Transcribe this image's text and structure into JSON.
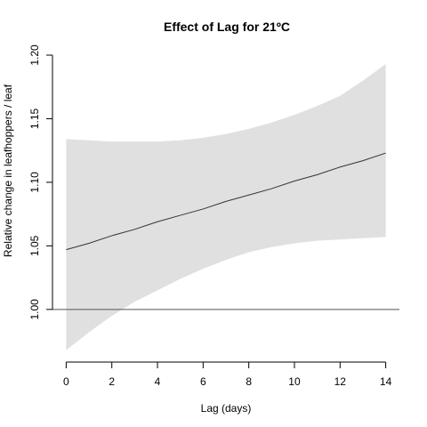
{
  "chart_data": {
    "type": "line",
    "title": "Effect of Lag for 21ºC",
    "xlabel": "Lag (days)",
    "ylabel": "Relative change in leafhoppers / leaf",
    "xlim": [
      -0.6,
      14.6
    ],
    "ylim": [
      0.96,
      1.2
    ],
    "xticks": [
      0,
      2,
      4,
      6,
      8,
      10,
      12,
      14
    ],
    "yticks": [
      1.0,
      1.05,
      1.1,
      1.15,
      1.2
    ],
    "ytick_labels": [
      "1.00",
      "1.05",
      "1.10",
      "1.15",
      "1.20"
    ],
    "reference_line": 1.0,
    "band_color": "#e0e0e0",
    "line_color": "#333333",
    "series": [
      {
        "x": [
          0,
          1,
          2,
          3,
          4,
          5,
          6,
          7,
          8,
          9,
          10,
          11,
          12,
          13,
          14
        ],
        "y": [
          1.047,
          1.052,
          1.058,
          1.063,
          1.069,
          1.074,
          1.079,
          1.085,
          1.09,
          1.095,
          1.101,
          1.106,
          1.112,
          1.117,
          1.123
        ],
        "lower": [
          0.968,
          0.982,
          0.995,
          1.006,
          1.015,
          1.024,
          1.032,
          1.039,
          1.045,
          1.049,
          1.052,
          1.054,
          1.055,
          1.056,
          1.057
        ],
        "upper": [
          1.134,
          1.133,
          1.132,
          1.132,
          1.132,
          1.133,
          1.135,
          1.138,
          1.142,
          1.147,
          1.153,
          1.16,
          1.168,
          1.18,
          1.193
        ]
      }
    ]
  }
}
